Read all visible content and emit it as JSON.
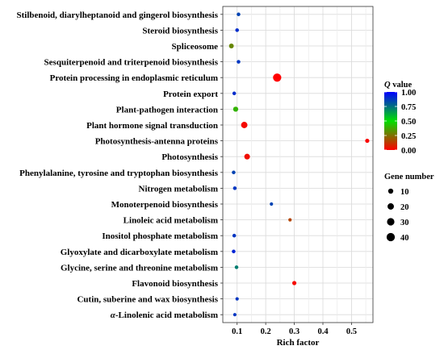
{
  "chart_data": {
    "type": "scatter",
    "title": "",
    "xlabel": "Rich factor",
    "ylabel": "",
    "xlim": [
      0.05,
      0.575
    ],
    "x_ticks": [
      "0.1",
      "0.2",
      "0.3",
      "0.4",
      "0.5"
    ],
    "grid": true,
    "categories": [
      "Stilbenoid, diarylheptanoid and gingerol biosynthesis",
      "Steroid biosynthesis",
      "Spliceosome",
      "Sesquiterpenoid and triterpenoid biosynthesis",
      "Protein processing in endoplasmic reticulum",
      "Protein export",
      "Plant-pathogen interaction",
      "Plant hormone signal transduction",
      "Photosynthesis-antenna proteins",
      "Photosynthesis",
      "Phenylalanine, tyrosine and tryptophan biosynthesis",
      "Nitrogen metabolism",
      "Monoterpenoid biosynthesis",
      "Linoleic acid metabolism",
      "Inositol phosphate metabolism",
      "Glyoxylate and dicarboxylate metabolism",
      "Glycine, serine and threonine metabolism",
      "Flavonoid biosynthesis",
      "Cutin, suberine and wax biosynthesis",
      "α-Linolenic acid metabolism"
    ],
    "points": [
      {
        "rich_factor": 0.105,
        "q_value": 0.85,
        "gene_number": 3
      },
      {
        "rich_factor": 0.1,
        "q_value": 0.9,
        "gene_number": 3
      },
      {
        "rich_factor": 0.08,
        "q_value": 0.3,
        "gene_number": 8
      },
      {
        "rich_factor": 0.105,
        "q_value": 0.88,
        "gene_number": 3
      },
      {
        "rich_factor": 0.24,
        "q_value": 0.0,
        "gene_number": 40
      },
      {
        "rich_factor": 0.09,
        "q_value": 0.9,
        "gene_number": 3
      },
      {
        "rich_factor": 0.095,
        "q_value": 0.4,
        "gene_number": 10
      },
      {
        "rich_factor": 0.125,
        "q_value": 0.02,
        "gene_number": 20
      },
      {
        "rich_factor": 0.555,
        "q_value": 0.01,
        "gene_number": 5
      },
      {
        "rich_factor": 0.135,
        "q_value": 0.03,
        "gene_number": 14
      },
      {
        "rich_factor": 0.088,
        "q_value": 0.85,
        "gene_number": 3
      },
      {
        "rich_factor": 0.092,
        "q_value": 0.88,
        "gene_number": 3
      },
      {
        "rich_factor": 0.22,
        "q_value": 0.85,
        "gene_number": 2
      },
      {
        "rich_factor": 0.285,
        "q_value": 0.15,
        "gene_number": 2
      },
      {
        "rich_factor": 0.09,
        "q_value": 0.88,
        "gene_number": 3
      },
      {
        "rich_factor": 0.088,
        "q_value": 0.92,
        "gene_number": 3
      },
      {
        "rich_factor": 0.098,
        "q_value": 0.72,
        "gene_number": 3
      },
      {
        "rich_factor": 0.3,
        "q_value": 0.02,
        "gene_number": 5
      },
      {
        "rich_factor": 0.1,
        "q_value": 0.88,
        "gene_number": 2
      },
      {
        "rich_factor": 0.092,
        "q_value": 0.88,
        "gene_number": 2
      }
    ],
    "color_legend": {
      "title": "Q value",
      "labels": [
        "1.00",
        "0.75",
        "0.50",
        "0.25",
        "0.00"
      ],
      "scale": [
        "#ff0000",
        "#00e000",
        "#0000ff"
      ]
    },
    "size_legend": {
      "title": "Gene number",
      "values": [
        10,
        20,
        30,
        40
      ],
      "labels": [
        "10",
        "20",
        "30",
        "40"
      ]
    }
  }
}
